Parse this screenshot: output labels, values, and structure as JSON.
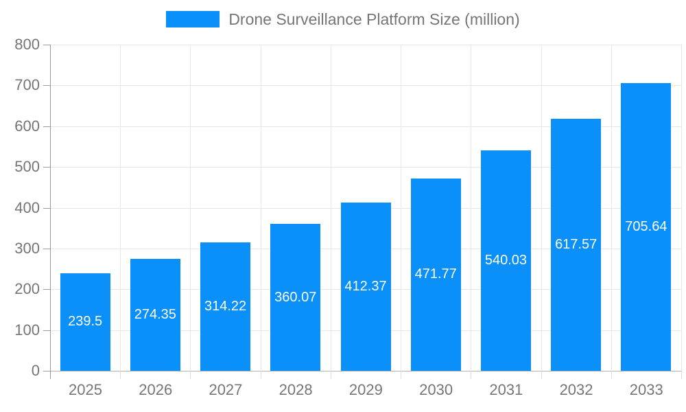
{
  "legend": {
    "label": "Drone Surveillance Platform Size (million)"
  },
  "chart_data": {
    "type": "bar",
    "title": "Drone Surveillance Platform Size (million)",
    "categories": [
      "2025",
      "2026",
      "2027",
      "2028",
      "2029",
      "2030",
      "2031",
      "2032",
      "2033"
    ],
    "values": [
      239.5,
      274.35,
      314.22,
      360.07,
      412.37,
      471.77,
      540.03,
      617.57,
      705.64
    ],
    "value_labels": [
      "239.5",
      "274.35",
      "314.22",
      "360.07",
      "412.37",
      "471.77",
      "540.03",
      "617.57",
      "705.64"
    ],
    "xlabel": "",
    "ylabel": "",
    "ylim": [
      0,
      800
    ],
    "ytick_step": 100,
    "ytick_labels": [
      "0",
      "100",
      "200",
      "300",
      "400",
      "500",
      "600",
      "700",
      "800"
    ],
    "grid": true,
    "legend_position": "top-center",
    "colors": {
      "bar": "#0a90f8",
      "value_label": "#ffffff",
      "grid_line": "#e6e6e6",
      "axis_line": "#9a9a9a",
      "baseline": "#b3b3b3",
      "tick": "#dcdcdc",
      "axis_text": "#757575"
    }
  }
}
